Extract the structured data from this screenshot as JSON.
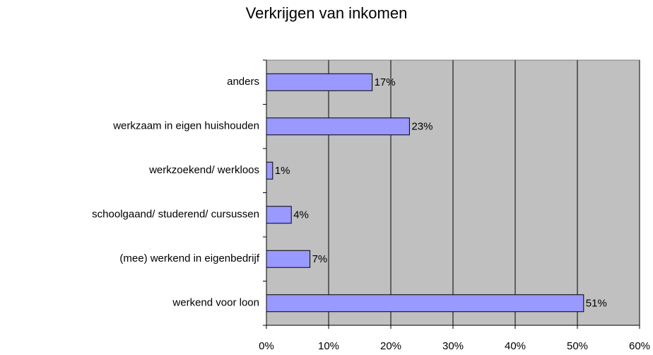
{
  "chart_data": {
    "type": "hbar",
    "title": "Verkrijgen van inkomen",
    "categories": [
      "anders",
      "werkzaam in eigen huishouden",
      "werkzoekend/ werkloos",
      "schoolgaand/ studerend/ cursussen",
      "(mee) werkend in eigenbedrijf",
      "werkend voor loon"
    ],
    "values": [
      17,
      23,
      1,
      4,
      7,
      51
    ],
    "value_labels": [
      "17%",
      "23%",
      "1%",
      "4%",
      "7%",
      "51%"
    ],
    "color": "#9999ff",
    "xlim": [
      0,
      60
    ],
    "xticks": [
      {
        "value": 0,
        "label": "0%"
      },
      {
        "value": 10,
        "label": "10%"
      },
      {
        "value": 20,
        "label": "20%"
      },
      {
        "value": 30,
        "label": "30%"
      },
      {
        "value": 40,
        "label": "40%"
      },
      {
        "value": 50,
        "label": "50%"
      },
      {
        "value": 60,
        "label": "60%"
      }
    ],
    "grid": true
  }
}
